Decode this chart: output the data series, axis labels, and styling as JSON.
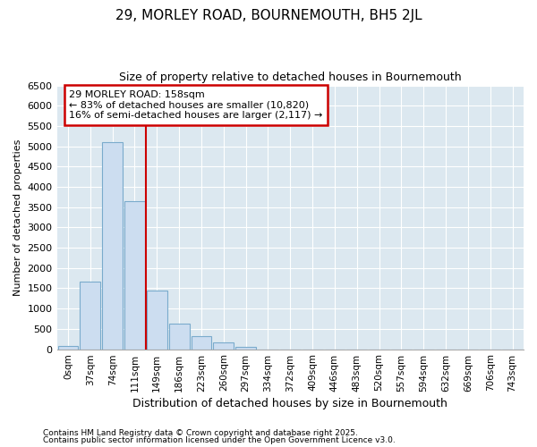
{
  "title1": "29, MORLEY ROAD, BOURNEMOUTH, BH5 2JL",
  "title2": "Size of property relative to detached houses in Bournemouth",
  "xlabel": "Distribution of detached houses by size in Bournemouth",
  "ylabel": "Number of detached properties",
  "categories": [
    "0sqm",
    "37sqm",
    "74sqm",
    "111sqm",
    "149sqm",
    "186sqm",
    "223sqm",
    "260sqm",
    "297sqm",
    "334sqm",
    "372sqm",
    "409sqm",
    "446sqm",
    "483sqm",
    "520sqm",
    "557sqm",
    "594sqm",
    "632sqm",
    "669sqm",
    "706sqm",
    "743sqm"
  ],
  "bar_values": [
    70,
    1660,
    5100,
    3650,
    1450,
    620,
    320,
    160,
    60,
    0,
    0,
    0,
    0,
    0,
    0,
    0,
    0,
    0,
    0,
    0,
    0
  ],
  "bar_color": "#ccddf0",
  "bar_edge_color": "#7aabcc",
  "ylim": [
    0,
    6500
  ],
  "yticks": [
    0,
    500,
    1000,
    1500,
    2000,
    2500,
    3000,
    3500,
    4000,
    4500,
    5000,
    5500,
    6000,
    6500
  ],
  "vline_color": "#cc0000",
  "vline_pos": 3.5,
  "annotation_text_line1": "29 MORLEY ROAD: 158sqm",
  "annotation_text_line2": "← 83% of detached houses are smaller (10,820)",
  "annotation_text_line3": "16% of semi-detached houses are larger (2,117) →",
  "plot_bg_color": "#dce8f0",
  "fig_bg_color": "#ffffff",
  "grid_color": "#ffffff",
  "footer1": "Contains HM Land Registry data © Crown copyright and database right 2025.",
  "footer2": "Contains public sector information licensed under the Open Government Licence v3.0."
}
